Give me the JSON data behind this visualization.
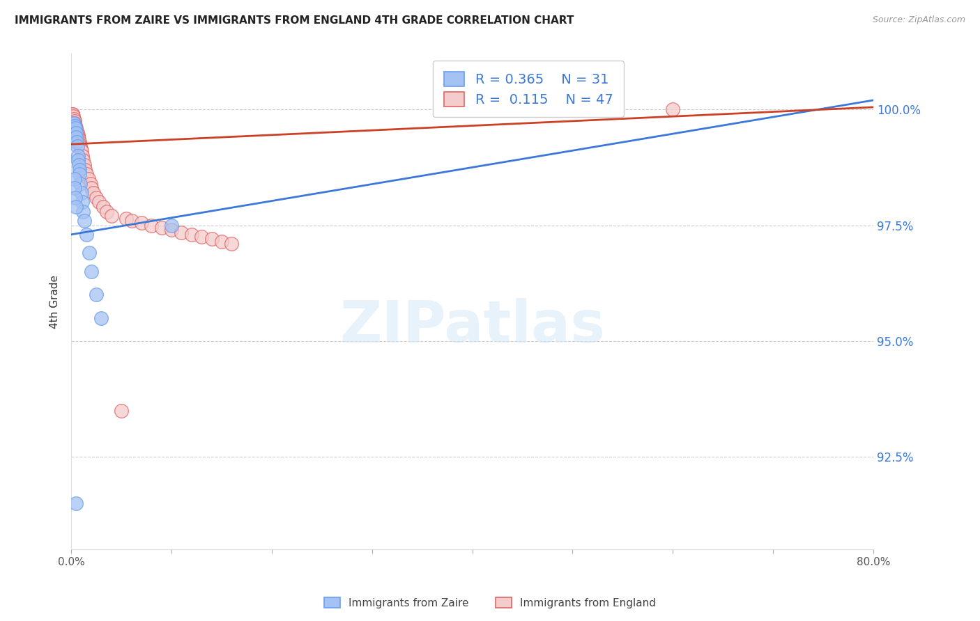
{
  "title": "IMMIGRANTS FROM ZAIRE VS IMMIGRANTS FROM ENGLAND 4TH GRADE CORRELATION CHART",
  "source": "Source: ZipAtlas.com",
  "ylabel": "4th Grade",
  "xlim": [
    0.0,
    80.0
  ],
  "ylim": [
    90.5,
    101.2
  ],
  "yticks": [
    92.5,
    95.0,
    97.5,
    100.0
  ],
  "ytick_labels": [
    "92.5%",
    "95.0%",
    "97.5%",
    "100.0%"
  ],
  "xticks": [
    0.0,
    10.0,
    20.0,
    30.0,
    40.0,
    50.0,
    60.0,
    70.0,
    80.0
  ],
  "xtick_labels": [
    "0.0%",
    "",
    "",
    "",
    "",
    "",
    "",
    "",
    "80.0%"
  ],
  "blue_color": "#a4c2f4",
  "pink_color": "#f4cccc",
  "blue_edge_color": "#6d9eeb",
  "pink_edge_color": "#e06666",
  "blue_line_color": "#3c78d8",
  "pink_line_color": "#cc4125",
  "legend_blue_label": "R = 0.365    N = 31",
  "legend_pink_label": "R =  0.115    N = 47",
  "legend_label_blue": "Immigrants from Zaire",
  "legend_label_pink": "Immigrants from England",
  "watermark": "ZIPatlas",
  "blue_trend": [
    0.0,
    80.0,
    97.3,
    100.2
  ],
  "pink_trend": [
    0.0,
    80.0,
    99.25,
    100.05
  ],
  "blue_x": [
    0.15,
    0.2,
    0.25,
    0.3,
    0.35,
    0.4,
    0.45,
    0.5,
    0.55,
    0.6,
    0.65,
    0.7,
    0.75,
    0.8,
    0.85,
    0.9,
    1.0,
    1.1,
    1.2,
    1.3,
    1.5,
    1.8,
    2.0,
    2.5,
    3.0,
    0.3,
    0.35,
    0.4,
    0.45,
    0.5,
    10.0
  ],
  "blue_y": [
    99.7,
    99.6,
    99.7,
    99.65,
    99.5,
    99.6,
    99.5,
    99.4,
    99.3,
    99.2,
    99.0,
    98.9,
    98.8,
    98.7,
    98.6,
    98.4,
    98.2,
    98.0,
    97.8,
    97.6,
    97.3,
    96.9,
    96.5,
    96.0,
    95.5,
    98.5,
    98.3,
    98.1,
    97.9,
    91.5,
    97.5
  ],
  "pink_x": [
    0.1,
    0.15,
    0.2,
    0.25,
    0.3,
    0.35,
    0.4,
    0.45,
    0.5,
    0.55,
    0.6,
    0.65,
    0.7,
    0.75,
    0.8,
    0.85,
    0.9,
    0.95,
    1.0,
    1.1,
    1.2,
    1.3,
    1.4,
    1.5,
    1.7,
    1.9,
    2.0,
    2.2,
    2.5,
    2.8,
    3.2,
    3.5,
    4.0,
    5.5,
    6.0,
    7.0,
    8.0,
    9.0,
    10.0,
    11.0,
    12.0,
    13.0,
    14.0,
    15.0,
    16.0,
    60.0,
    5.0
  ],
  "pink_y": [
    99.9,
    99.9,
    99.85,
    99.8,
    99.75,
    99.7,
    99.65,
    99.6,
    99.55,
    99.5,
    99.5,
    99.45,
    99.4,
    99.35,
    99.3,
    99.25,
    99.2,
    99.15,
    99.1,
    99.0,
    98.9,
    98.8,
    98.7,
    98.6,
    98.5,
    98.4,
    98.3,
    98.2,
    98.1,
    98.0,
    97.9,
    97.8,
    97.7,
    97.65,
    97.6,
    97.55,
    97.5,
    97.45,
    97.4,
    97.35,
    97.3,
    97.25,
    97.2,
    97.15,
    97.1,
    100.0,
    93.5
  ]
}
